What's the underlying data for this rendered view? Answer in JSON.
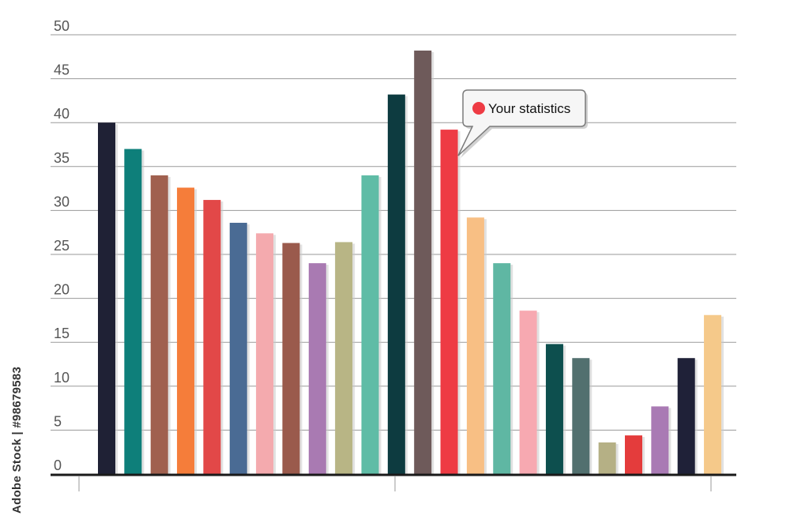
{
  "chart_data": {
    "type": "bar",
    "y_ticks": [
      "0",
      "5",
      "10",
      "15",
      "20",
      "25",
      "30",
      "35",
      "40",
      "45",
      "50"
    ],
    "ylim": [
      0,
      50
    ],
    "grid": true,
    "legend": "none",
    "values": [
      40,
      37,
      34,
      32.6,
      31.2,
      28.6,
      27.4,
      26.3,
      24,
      26.4,
      34,
      43.2,
      48.2,
      39.2,
      29.2,
      24,
      18.6,
      14.8,
      13.2,
      3.6,
      4.4,
      7.7,
      13.2,
      18.1
    ],
    "colors": [
      "#1f2135",
      "#0e7f7a",
      "#a0604f",
      "#f57d3a",
      "#e24848",
      "#4a6b94",
      "#f4aaae",
      "#9a5a4c",
      "#a97ab2",
      "#b8b585",
      "#5fbca6",
      "#0d3b40",
      "#6e5a5a",
      "#ee3b44",
      "#f8bf84",
      "#5fb7a3",
      "#f7a9b1",
      "#0d4f4e",
      "#52706f",
      "#b5b085",
      "#e43c3c",
      "#a97ab4",
      "#1f2138",
      "#f5c98a"
    ],
    "annotation": {
      "text": "Your statistics",
      "target_index": 13,
      "marker_color": "#ee3b44"
    }
  },
  "watermark": {
    "side_text": "Adobe Stock | #98679583"
  }
}
